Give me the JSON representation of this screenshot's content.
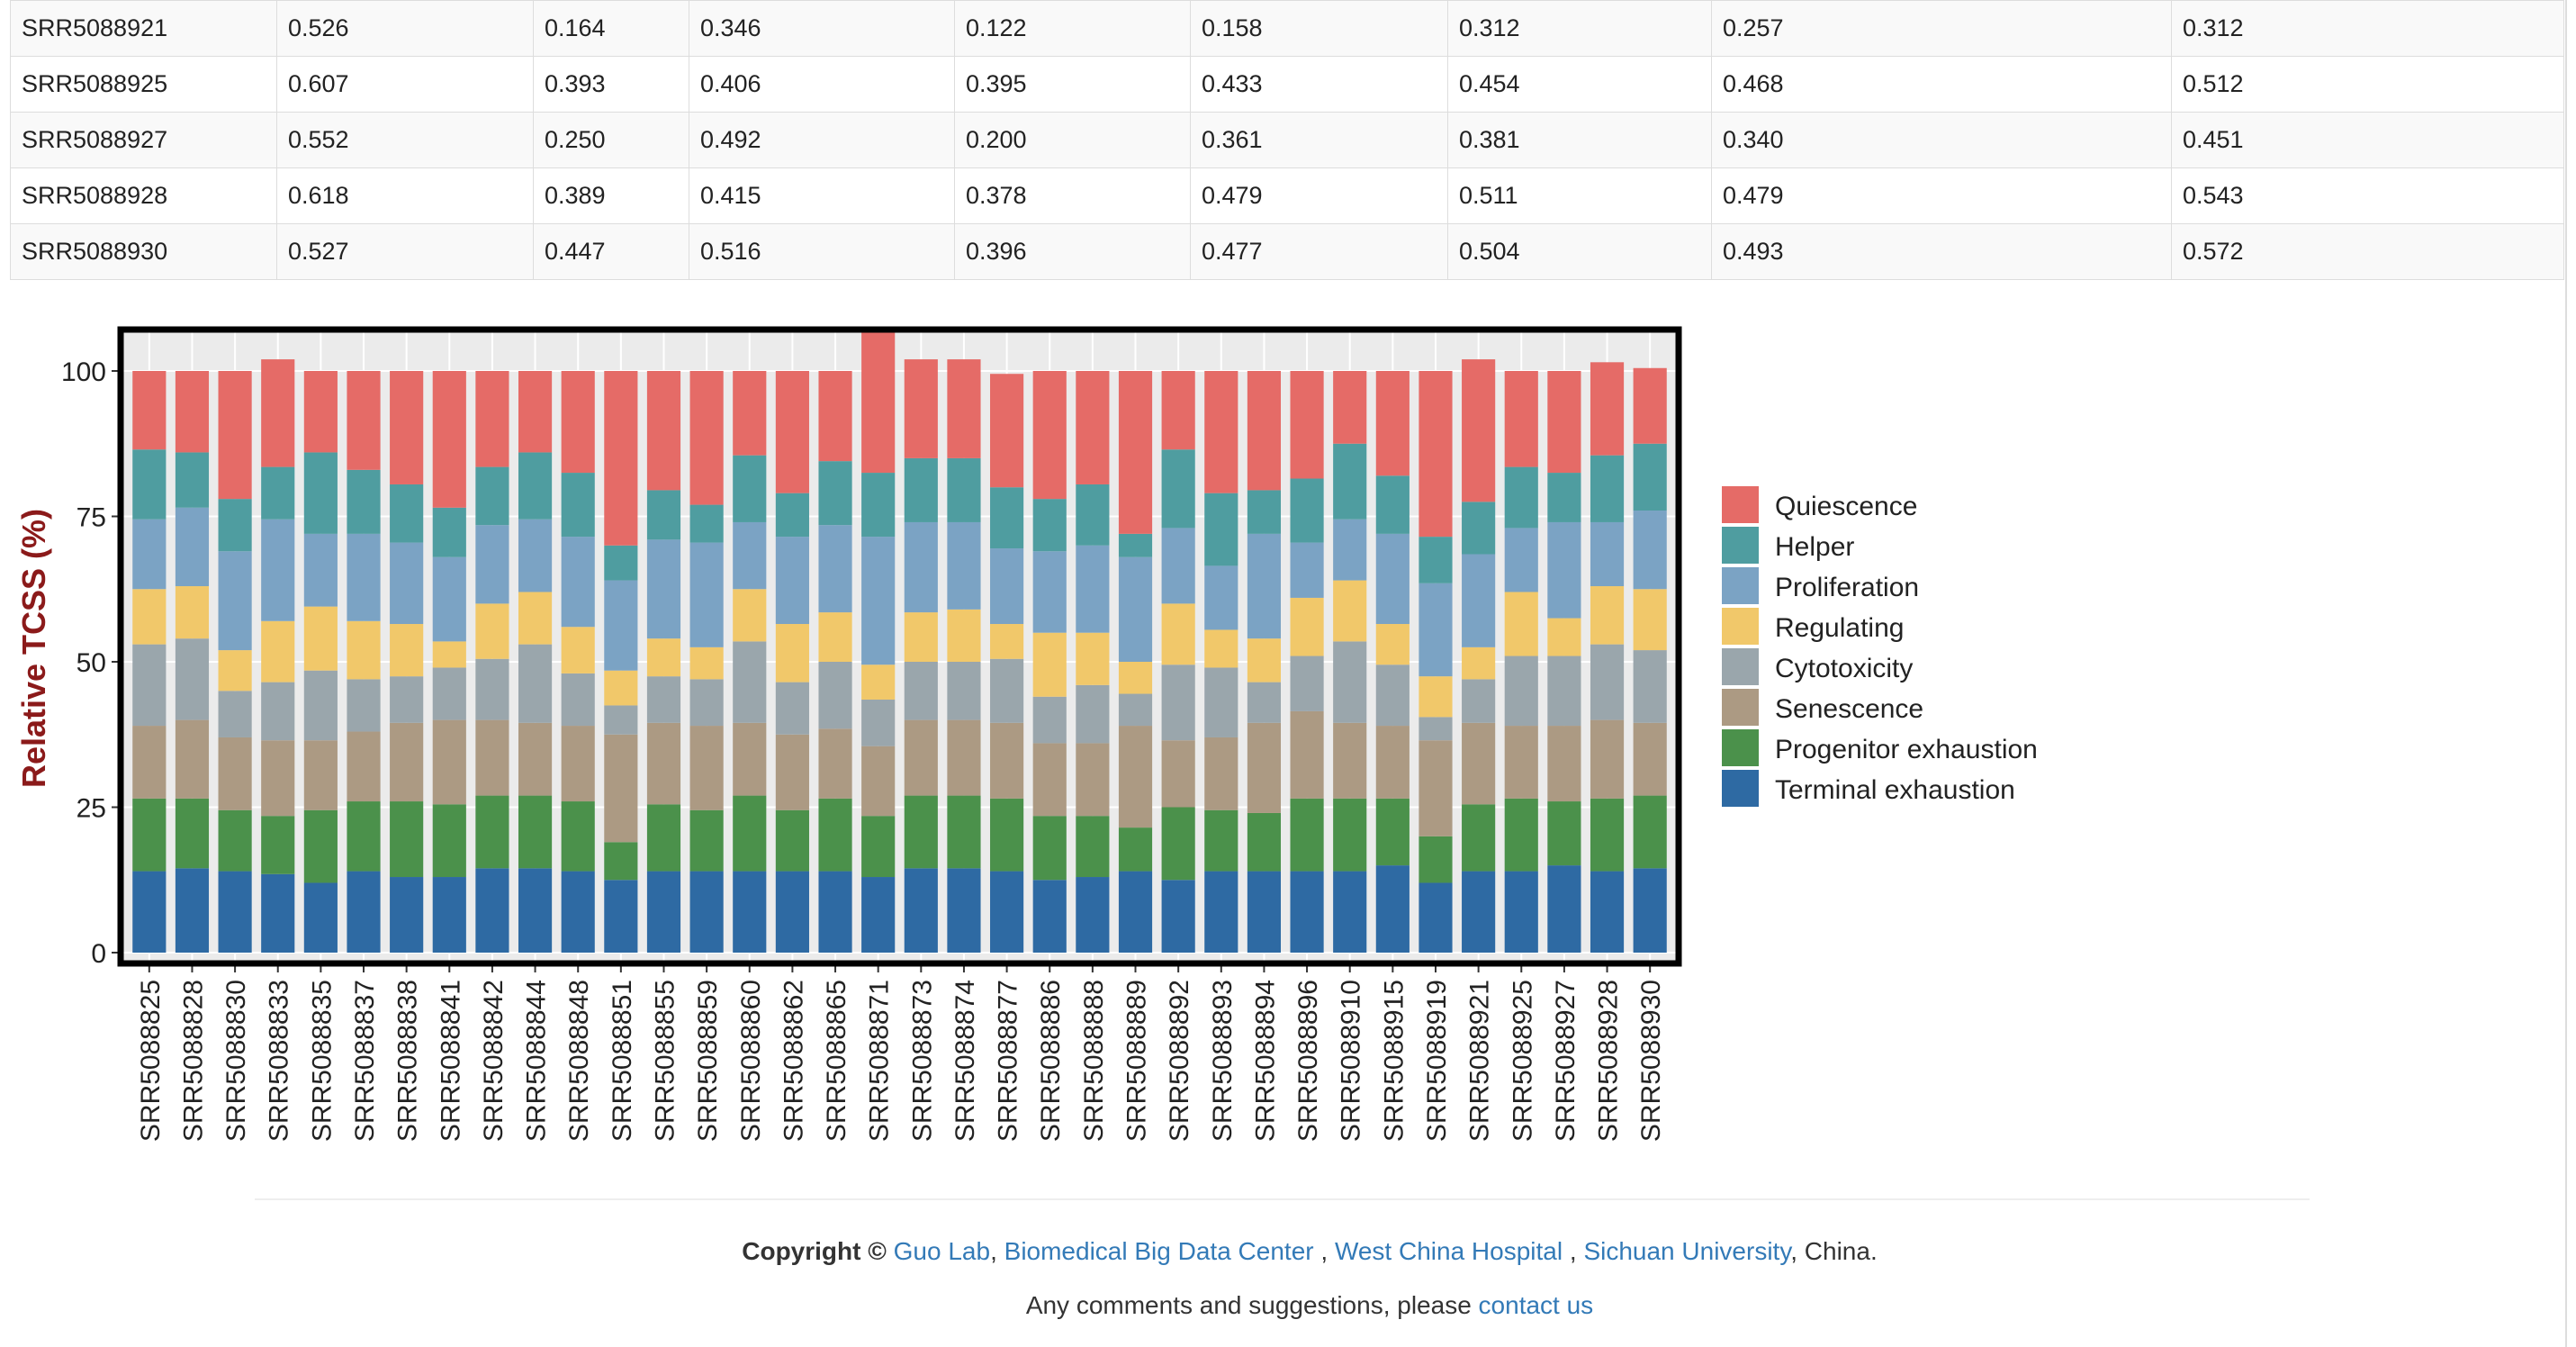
{
  "table": {
    "rows": [
      [
        "SRR5088921",
        "0.526",
        "0.164",
        "0.346",
        "0.122",
        "0.158",
        "0.312",
        "0.257",
        "0.312"
      ],
      [
        "SRR5088925",
        "0.607",
        "0.393",
        "0.406",
        "0.395",
        "0.433",
        "0.454",
        "0.468",
        "0.512"
      ],
      [
        "SRR5088927",
        "0.552",
        "0.250",
        "0.492",
        "0.200",
        "0.361",
        "0.381",
        "0.340",
        "0.451"
      ],
      [
        "SRR5088928",
        "0.618",
        "0.389",
        "0.415",
        "0.378",
        "0.479",
        "0.511",
        "0.479",
        "0.543"
      ],
      [
        "SRR5088930",
        "0.527",
        "0.447",
        "0.516",
        "0.396",
        "0.477",
        "0.504",
        "0.493",
        "0.572"
      ]
    ]
  },
  "chart_data": {
    "type": "bar",
    "stacked": true,
    "ylabel": "Relative TCSS (%)",
    "ylim": [
      0,
      100
    ],
    "yticks": [
      "0",
      "25",
      "50",
      "75",
      "100"
    ],
    "legend_position": "right",
    "grid": true,
    "categories": [
      "SRR5088825",
      "SRR5088828",
      "SRR5088830",
      "SRR5088833",
      "SRR5088835",
      "SRR5088837",
      "SRR5088838",
      "SRR5088841",
      "SRR5088842",
      "SRR5088844",
      "SRR5088848",
      "SRR5088851",
      "SRR5088855",
      "SRR5088859",
      "SRR5088860",
      "SRR5088862",
      "SRR5088865",
      "SRR5088871",
      "SRR5088873",
      "SRR5088874",
      "SRR5088877",
      "SRR5088886",
      "SRR5088888",
      "SRR5088889",
      "SRR5088892",
      "SRR5088893",
      "SRR5088894",
      "SRR5088896",
      "SRR5088910",
      "SRR5088915",
      "SRR5088919",
      "SRR5088921",
      "SRR5088925",
      "SRR5088927",
      "SRR5088928",
      "SRR5088930"
    ],
    "series": [
      {
        "name": "Terminal exhaustion",
        "color": "#2e6aa3",
        "values": [
          14,
          14.5,
          14,
          13.5,
          12,
          14,
          13,
          13,
          14.5,
          14.5,
          14,
          12.5,
          14,
          14,
          14,
          14,
          14,
          13,
          14.5,
          14.5,
          14,
          12.5,
          13,
          14,
          12.5,
          14,
          14,
          14,
          14,
          15,
          12,
          14,
          14,
          15,
          14,
          14.5
        ]
      },
      {
        "name": "Progenitor exhaustion",
        "color": "#4b914b",
        "values": [
          12.5,
          12,
          10.5,
          10,
          12.5,
          12,
          13,
          12.5,
          12.5,
          12.5,
          12,
          6.5,
          11.5,
          10.5,
          13,
          10.5,
          12.5,
          10.5,
          12.5,
          12.5,
          12.5,
          11,
          10.5,
          7.5,
          12.5,
          10.5,
          10,
          12.5,
          12.5,
          11.5,
          8,
          11.5,
          12.5,
          11,
          12.5,
          12.5
        ]
      },
      {
        "name": "Senescence",
        "color": "#ac9a83",
        "values": [
          12.5,
          13.5,
          12.5,
          13,
          12,
          12,
          13.5,
          14.5,
          13,
          12.5,
          13,
          18.5,
          14,
          14.5,
          12.5,
          13,
          12,
          12,
          13,
          13,
          13,
          12.5,
          12.5,
          17.5,
          11.5,
          12.5,
          15.5,
          15,
          13,
          12.5,
          16.5,
          14,
          12.5,
          13,
          13.5,
          12.5
        ]
      },
      {
        "name": "Cytotoxicity",
        "color": "#9aa6ac",
        "values": [
          14,
          14,
          8,
          10,
          12,
          9,
          8,
          9,
          10.5,
          13.5,
          9,
          5,
          8,
          8,
          14,
          9,
          11.5,
          8,
          10,
          10,
          11,
          8,
          10,
          5.5,
          13,
          12,
          7,
          9.5,
          14,
          10.5,
          4,
          7.5,
          12,
          12,
          13,
          12.5
        ]
      },
      {
        "name": "Regulating",
        "color": "#f1c86a",
        "values": [
          9.5,
          9,
          7,
          10.5,
          11,
          10,
          9,
          4.5,
          9.5,
          9,
          8,
          6,
          6.5,
          5.5,
          9,
          10,
          8.5,
          6,
          8.5,
          9,
          6,
          11,
          9,
          5.5,
          10.5,
          6.5,
          7.5,
          10,
          10.5,
          7,
          7,
          5.5,
          11,
          6.5,
          10,
          10.5
        ]
      },
      {
        "name": "Proliferation",
        "color": "#7ba3c4",
        "values": [
          12,
          13.5,
          17,
          17.5,
          12.5,
          15,
          14,
          14.5,
          13.5,
          12.5,
          15.5,
          15.5,
          17,
          18,
          11.5,
          15,
          15,
          22,
          15.5,
          15,
          13,
          14,
          15,
          18,
          13,
          11,
          18,
          9.5,
          10.5,
          15.5,
          16,
          16,
          11,
          16.5,
          11,
          13.5
        ]
      },
      {
        "name": "Helper",
        "color": "#4f9da0",
        "values": [
          12,
          9.5,
          9,
          9,
          14,
          11,
          10,
          8.5,
          10,
          11.5,
          11,
          6,
          8.5,
          6.5,
          11.5,
          7.5,
          11,
          11,
          11,
          11,
          10.5,
          9,
          10.5,
          4,
          13.5,
          12.5,
          7.5,
          11,
          13,
          10,
          8,
          9,
          10.5,
          8.5,
          11.5,
          11.5
        ]
      },
      {
        "name": "Quiescence",
        "color": "#e56b67",
        "values": [
          13.5,
          14,
          22,
          18.5,
          14,
          17,
          19.5,
          23.5,
          16.5,
          14,
          17.5,
          30,
          20.5,
          23,
          14.5,
          21,
          15.5,
          24.5,
          17,
          17,
          19.5,
          22,
          19.5,
          28,
          13.5,
          21,
          20.5,
          18.5,
          12.5,
          18,
          28.5,
          24.5,
          16.5,
          17.5,
          16,
          13
        ]
      }
    ]
  },
  "legend": {
    "items": [
      "Quiescence",
      "Helper",
      "Proliferation",
      "Regulating",
      "Cytotoxicity",
      "Senescence",
      "Progenitor exhaustion",
      "Terminal exhaustion"
    ],
    "colors": [
      "#e56b67",
      "#4f9da0",
      "#7ba3c4",
      "#f1c86a",
      "#9aa6ac",
      "#ac9a83",
      "#4b914b",
      "#2e6aa3"
    ]
  },
  "footer": {
    "copyright_label": "Copyright ©",
    "guo_lab": "Guo Lab",
    "bbdc": "Biomedical Big Data Center",
    "wch": "West China Hospital",
    "scu": "Sichuan University",
    "china": ", China.",
    "comments_text": "Any comments and suggestions, please",
    "contact": "contact us"
  }
}
